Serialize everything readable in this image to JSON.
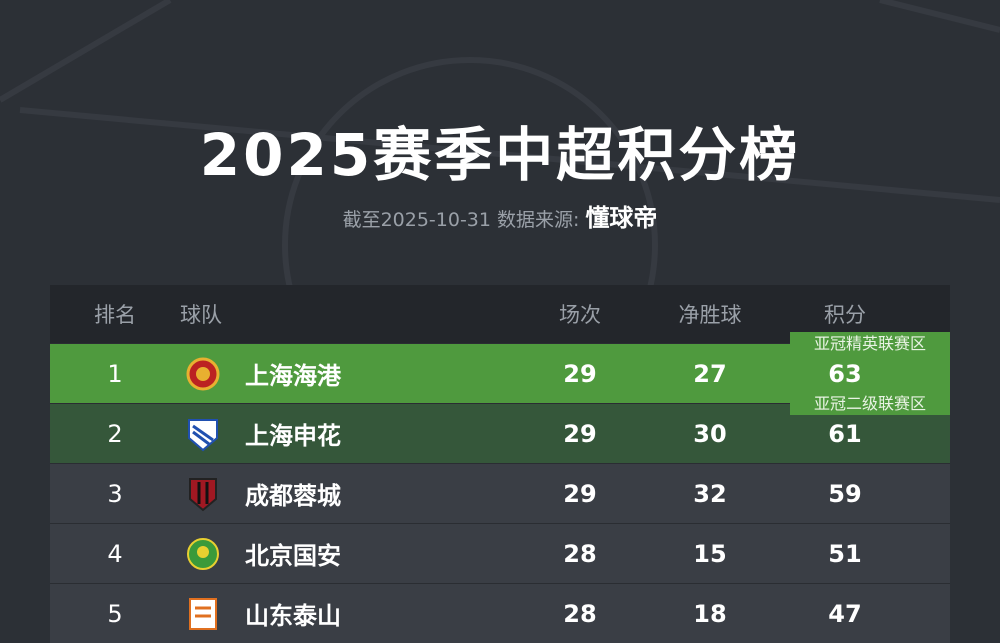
{
  "header": {
    "title": "2025赛季中超积分榜",
    "subtitle": "截至2025-10-31 数据来源:",
    "source": "懂球帝"
  },
  "table": {
    "columns": [
      "排名",
      "球队",
      "场次",
      "净胜球",
      "积分"
    ],
    "rows": [
      {
        "rank": 1,
        "team": "上海海港",
        "played": 29,
        "goal_diff": 27,
        "points": 63,
        "zone": "亚冠精英联赛区"
      },
      {
        "rank": 2,
        "team": "上海申花",
        "played": 29,
        "goal_diff": 30,
        "points": 61,
        "zone": "亚冠二级联赛区"
      },
      {
        "rank": 3,
        "team": "成都蓉城",
        "played": 29,
        "goal_diff": 32,
        "points": 59
      },
      {
        "rank": 4,
        "team": "北京国安",
        "played": 28,
        "goal_diff": 15,
        "points": 51
      },
      {
        "rank": 5,
        "team": "山东泰山",
        "played": 28,
        "goal_diff": 18,
        "points": 47
      }
    ]
  }
}
